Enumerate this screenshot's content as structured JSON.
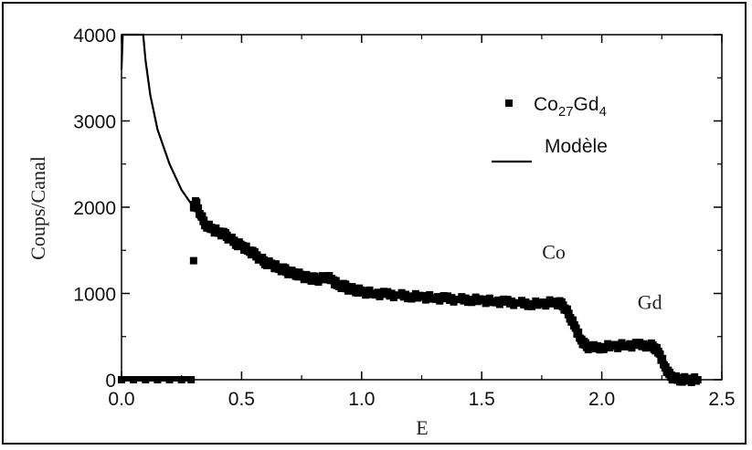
{
  "chart_data": {
    "type": "scatter",
    "xlabel": "E",
    "ylabel": "Coups/Canal",
    "xlim": [
      0.0,
      2.5
    ],
    "ylim": [
      0,
      4000
    ],
    "x_ticks": [
      "0.0",
      "0.5",
      "1.0",
      "1.5",
      "2.0",
      "2.5"
    ],
    "y_ticks": [
      "0",
      "1000",
      "2000",
      "3000",
      "4000"
    ],
    "grid": false,
    "legend_placement": "top-right",
    "legend": {
      "data_label_base": "Co",
      "data_label_sub1": "27",
      "data_label_mid": "Gd",
      "data_label_sub2": "4",
      "model_label": "Modèle"
    },
    "annotations": [
      {
        "text": "Co",
        "x": 1.8,
        "y": 1400
      },
      {
        "text": "Gd",
        "x": 2.2,
        "y": 820
      }
    ],
    "series": [
      {
        "marker": "square",
        "data": [
          [
            0.0,
            0
          ],
          [
            0.05,
            0
          ],
          [
            0.1,
            0
          ],
          [
            0.15,
            0
          ],
          [
            0.2,
            0
          ],
          [
            0.25,
            0
          ],
          [
            0.29,
            0
          ],
          [
            0.3,
            1380
          ],
          [
            0.3,
            2000
          ],
          [
            0.31,
            2050
          ],
          [
            0.33,
            1900
          ],
          [
            0.35,
            1800
          ],
          [
            0.38,
            1740
          ],
          [
            0.4,
            1720
          ],
          [
            0.43,
            1680
          ],
          [
            0.45,
            1640
          ],
          [
            0.48,
            1580
          ],
          [
            0.5,
            1550
          ],
          [
            0.53,
            1500
          ],
          [
            0.55,
            1460
          ],
          [
            0.58,
            1400
          ],
          [
            0.6,
            1360
          ],
          [
            0.63,
            1330
          ],
          [
            0.65,
            1300
          ],
          [
            0.68,
            1270
          ],
          [
            0.7,
            1240
          ],
          [
            0.73,
            1230
          ],
          [
            0.75,
            1200
          ],
          [
            0.78,
            1180
          ],
          [
            0.8,
            1170
          ],
          [
            0.83,
            1160
          ],
          [
            0.85,
            1200
          ],
          [
            0.88,
            1150
          ],
          [
            0.9,
            1100
          ],
          [
            0.93,
            1080
          ],
          [
            0.95,
            1050
          ],
          [
            0.98,
            1040
          ],
          [
            1.0,
            1020
          ],
          [
            1.05,
            1000
          ],
          [
            1.1,
            990
          ],
          [
            1.15,
            980
          ],
          [
            1.2,
            970
          ],
          [
            1.25,
            960
          ],
          [
            1.3,
            950
          ],
          [
            1.35,
            940
          ],
          [
            1.4,
            930
          ],
          [
            1.45,
            930
          ],
          [
            1.5,
            920
          ],
          [
            1.55,
            910
          ],
          [
            1.6,
            900
          ],
          [
            1.65,
            890
          ],
          [
            1.7,
            880
          ],
          [
            1.75,
            880
          ],
          [
            1.8,
            900
          ],
          [
            1.83,
            880
          ],
          [
            1.85,
            820
          ],
          [
            1.87,
            720
          ],
          [
            1.89,
            600
          ],
          [
            1.91,
            480
          ],
          [
            1.93,
            400
          ],
          [
            1.95,
            370
          ],
          [
            2.0,
            380
          ],
          [
            2.05,
            390
          ],
          [
            2.1,
            400
          ],
          [
            2.15,
            400
          ],
          [
            2.2,
            400
          ],
          [
            2.22,
            380
          ],
          [
            2.24,
            300
          ],
          [
            2.26,
            170
          ],
          [
            2.28,
            60
          ],
          [
            2.3,
            15
          ],
          [
            2.33,
            5
          ],
          [
            2.36,
            0
          ],
          [
            2.4,
            0
          ]
        ]
      },
      {
        "line": true,
        "data": [
          [
            0.0,
            3600
          ],
          [
            0.005,
            4000
          ],
          [
            0.05,
            4000
          ],
          [
            0.09,
            4000
          ],
          [
            0.1,
            3700
          ],
          [
            0.12,
            3300
          ],
          [
            0.15,
            2900
          ],
          [
            0.2,
            2500
          ],
          [
            0.25,
            2200
          ],
          [
            0.3,
            2000
          ]
        ]
      }
    ]
  }
}
